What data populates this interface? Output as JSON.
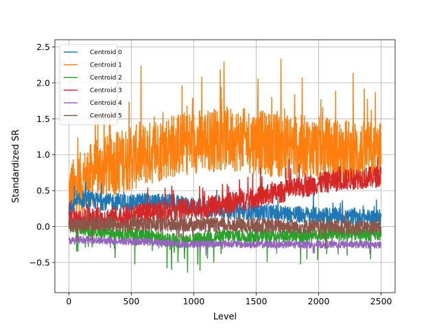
{
  "chart_data": {
    "type": "line",
    "title": "",
    "xlabel": "Level",
    "ylabel": "Standardized SR",
    "xlim": [
      -112,
      2612
    ],
    "ylim": [
      -0.92,
      2.6
    ],
    "xticks": [
      0,
      500,
      1000,
      1500,
      2000,
      2500
    ],
    "yticks": [
      -0.5,
      0.0,
      0.5,
      1.0,
      1.5,
      2.0,
      2.5
    ],
    "xtick_labels": [
      "0",
      "500",
      "1000",
      "1500",
      "2000",
      "2500"
    ],
    "ytick_labels": [
      "−0.5",
      "0.0",
      "0.5",
      "1.0",
      "1.5",
      "2.0",
      "2.5"
    ],
    "grid": true,
    "legend_position": "top-left",
    "series": [
      {
        "name": "Centroid 0",
        "color": "#1f77b4",
        "x": [
          0,
          100,
          200,
          300,
          400,
          500,
          600,
          700,
          800,
          900,
          1000,
          1100,
          1200,
          1300,
          1400,
          1500,
          1600,
          1700,
          1800,
          1900,
          2000,
          2100,
          2200,
          2300,
          2400,
          2500
        ],
        "values": [
          0.22,
          0.38,
          0.36,
          0.34,
          0.35,
          0.32,
          0.36,
          0.33,
          0.35,
          0.3,
          0.28,
          0.25,
          0.24,
          0.22,
          0.22,
          0.2,
          0.19,
          0.18,
          0.17,
          0.16,
          0.15,
          0.15,
          0.14,
          0.13,
          0.12,
          0.12
        ]
      },
      {
        "name": "Centroid 1",
        "color": "#ff7f0e",
        "x": [
          0,
          100,
          200,
          300,
          400,
          500,
          600,
          700,
          800,
          900,
          1000,
          1100,
          1200,
          1300,
          1400,
          1500,
          1600,
          1700,
          1800,
          1900,
          2000,
          2100,
          2200,
          2300,
          2400,
          2500
        ],
        "values": [
          0.45,
          0.6,
          0.75,
          0.82,
          0.9,
          0.95,
          1.0,
          1.05,
          1.12,
          1.15,
          1.18,
          1.2,
          1.22,
          1.22,
          1.2,
          1.18,
          1.15,
          1.12,
          1.1,
          1.1,
          1.08,
          1.07,
          1.05,
          1.03,
          1.02,
          1.0
        ]
      },
      {
        "name": "Centroid 2",
        "color": "#2ca02c",
        "x": [
          0,
          100,
          200,
          300,
          400,
          500,
          600,
          700,
          800,
          900,
          1000,
          1100,
          1200,
          1300,
          1400,
          1500,
          1600,
          1700,
          1800,
          1900,
          2000,
          2100,
          2200,
          2300,
          2400,
          2500
        ],
        "values": [
          0.05,
          -0.02,
          -0.05,
          -0.07,
          -0.08,
          -0.1,
          -0.12,
          -0.15,
          -0.18,
          -0.2,
          -0.18,
          -0.15,
          -0.14,
          -0.13,
          -0.13,
          -0.12,
          -0.12,
          -0.12,
          -0.11,
          -0.11,
          -0.1,
          -0.1,
          -0.1,
          -0.1,
          -0.1,
          -0.1
        ]
      },
      {
        "name": "Centroid 3",
        "color": "#d62728",
        "x": [
          0,
          100,
          200,
          300,
          400,
          500,
          600,
          700,
          800,
          900,
          1000,
          1100,
          1200,
          1300,
          1400,
          1500,
          1600,
          1700,
          1800,
          1900,
          2000,
          2100,
          2200,
          2300,
          2400,
          2500
        ],
        "values": [
          0.1,
          0.1,
          0.11,
          0.12,
          0.13,
          0.15,
          0.17,
          0.2,
          0.22,
          0.24,
          0.25,
          0.27,
          0.3,
          0.33,
          0.36,
          0.4,
          0.44,
          0.48,
          0.52,
          0.56,
          0.6,
          0.63,
          0.65,
          0.67,
          0.68,
          0.7
        ]
      },
      {
        "name": "Centroid 4",
        "color": "#9467bd",
        "x": [
          0,
          100,
          200,
          300,
          400,
          500,
          600,
          700,
          800,
          900,
          1000,
          1100,
          1200,
          1300,
          1400,
          1500,
          1600,
          1700,
          1800,
          1900,
          2000,
          2100,
          2200,
          2300,
          2400,
          2500
        ],
        "values": [
          -0.2,
          -0.18,
          -0.19,
          -0.2,
          -0.2,
          -0.21,
          -0.21,
          -0.22,
          -0.23,
          -0.24,
          -0.24,
          -0.24,
          -0.24,
          -0.24,
          -0.25,
          -0.25,
          -0.25,
          -0.25,
          -0.25,
          -0.25,
          -0.25,
          -0.25,
          -0.25,
          -0.25,
          -0.25,
          -0.26
        ]
      },
      {
        "name": "Centroid 5",
        "color": "#8c564b",
        "x": [
          0,
          100,
          200,
          300,
          400,
          500,
          600,
          700,
          800,
          900,
          1000,
          1100,
          1200,
          1300,
          1400,
          1500,
          1600,
          1700,
          1800,
          1900,
          2000,
          2100,
          2200,
          2300,
          2400,
          2500
        ],
        "values": [
          0.02,
          0.03,
          0.04,
          0.04,
          0.03,
          0.04,
          0.03,
          0.03,
          0.02,
          0.03,
          0.03,
          0.03,
          0.02,
          0.02,
          0.01,
          0.02,
          0.01,
          0.01,
          0.0,
          0.0,
          0.0,
          0.0,
          -0.01,
          -0.01,
          -0.01,
          0.0
        ]
      }
    ]
  }
}
